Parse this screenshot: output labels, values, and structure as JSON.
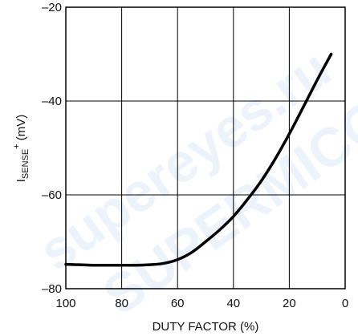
{
  "chart_data": {
    "type": "line",
    "title": "",
    "xlabel": "DUTY FACTOR (%)",
    "ylabel": {
      "main": "I",
      "subscript": "SENSE",
      "superscript": "+",
      "unit": " (mV)"
    },
    "xlim": [
      100,
      0
    ],
    "ylim": [
      -80,
      -20
    ],
    "x_ticks": [
      100,
      80,
      60,
      40,
      20,
      0
    ],
    "y_ticks": [
      -20,
      -40,
      -60,
      -80
    ],
    "x_tick_labels": [
      "100",
      "80",
      "60",
      "40",
      "20",
      "0"
    ],
    "y_tick_labels": [
      "–20",
      "–40",
      "–60",
      "–80"
    ],
    "grid": true,
    "series": [
      {
        "x": [
          100,
          95,
          90,
          85,
          80,
          75,
          70,
          65,
          60,
          55,
          50,
          45,
          40,
          35,
          30,
          25,
          20,
          15,
          10,
          5
        ],
        "y": [
          -74.8,
          -74.9,
          -75.0,
          -75.0,
          -75.0,
          -75.0,
          -74.9,
          -74.6,
          -73.8,
          -72.3,
          -70.0,
          -67.5,
          -64.6,
          -61.0,
          -57.0,
          -52.3,
          -47.0,
          -41.3,
          -35.5,
          -30.0
        ]
      }
    ]
  },
  "watermark": {
    "line1": "supereyes.ru",
    "line2": "SUPERMICO"
  }
}
